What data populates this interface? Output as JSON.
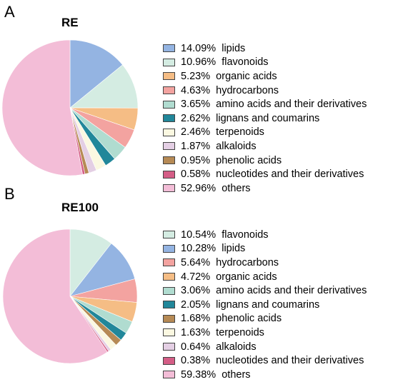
{
  "chart_data": [
    {
      "type": "pie",
      "panel": "A",
      "title": "RE",
      "slices": [
        {
          "label": "lipids",
          "value": 14.09,
          "text": "14.09%  lipids",
          "color": "#94b4e2"
        },
        {
          "label": "flavonoids",
          "value": 10.96,
          "text": "10.96%  flavonoids",
          "color": "#d4ece2"
        },
        {
          "label": "organic acids",
          "value": 5.23,
          "text": "5.23%  organic acids",
          "color": "#f5bd85"
        },
        {
          "label": "hydrocarbons",
          "value": 4.63,
          "text": "4.63%  hydrocarbons",
          "color": "#f3a3a0"
        },
        {
          "label": "amino acids and their derivatives",
          "value": 3.65,
          "text": "3.65%  amino acids and their derivatives",
          "color": "#b0dcd0"
        },
        {
          "label": "lignans and coumarins",
          "value": 2.62,
          "text": "2.62%  lignans and coumarins",
          "color": "#21879a"
        },
        {
          "label": "terpenoids",
          "value": 2.46,
          "text": "2.46%  terpenoids",
          "color": "#fbf8e1"
        },
        {
          "label": "alkaloids",
          "value": 1.87,
          "text": "1.87%  alkaloids",
          "color": "#e4cfe4"
        },
        {
          "label": "phenolic acids",
          "value": 0.95,
          "text": "0.95%  phenolic acids",
          "color": "#b68a55"
        },
        {
          "label": "nucleotides and their derivatives",
          "value": 0.58,
          "text": "0.58%  nucleotides and their derivatives",
          "color": "#d45d86"
        },
        {
          "label": "others",
          "value": 52.96,
          "text": "52.96%  others",
          "color": "#f3bdd7"
        }
      ]
    },
    {
      "type": "pie",
      "panel": "B",
      "title": "RE100",
      "slices": [
        {
          "label": "flavonoids",
          "value": 10.54,
          "text": "10.54%  flavonoids",
          "color": "#d4ece2"
        },
        {
          "label": "lipids",
          "value": 10.28,
          "text": "10.28%  lipids",
          "color": "#94b4e2"
        },
        {
          "label": "hydrocarbons",
          "value": 5.64,
          "text": "5.64%  hydrocarbons",
          "color": "#f3a3a0"
        },
        {
          "label": "organic acids",
          "value": 4.72,
          "text": "4.72%  organic acids",
          "color": "#f5bd85"
        },
        {
          "label": "amino acids and their derivatives",
          "value": 3.06,
          "text": "3.06%  amino acids and their derivatives",
          "color": "#b0dcd0"
        },
        {
          "label": "lignans and coumarins",
          "value": 2.05,
          "text": "2.05%  lignans and coumarins",
          "color": "#21879a"
        },
        {
          "label": "phenolic acids",
          "value": 1.68,
          "text": "1.68%  phenolic acids",
          "color": "#b68a55"
        },
        {
          "label": "terpenoids",
          "value": 1.63,
          "text": "1.63%  terpenoids",
          "color": "#fbf8e1"
        },
        {
          "label": "alkaloids",
          "value": 0.64,
          "text": "0.64%  alkaloids",
          "color": "#e4cfe4"
        },
        {
          "label": "nucleotides and their derivatives",
          "value": 0.38,
          "text": "0.38%  nucleotides and their derivatives",
          "color": "#d45d86"
        },
        {
          "label": "others",
          "value": 59.38,
          "text": "59.38%  others",
          "color": "#f3bdd7"
        }
      ]
    }
  ]
}
